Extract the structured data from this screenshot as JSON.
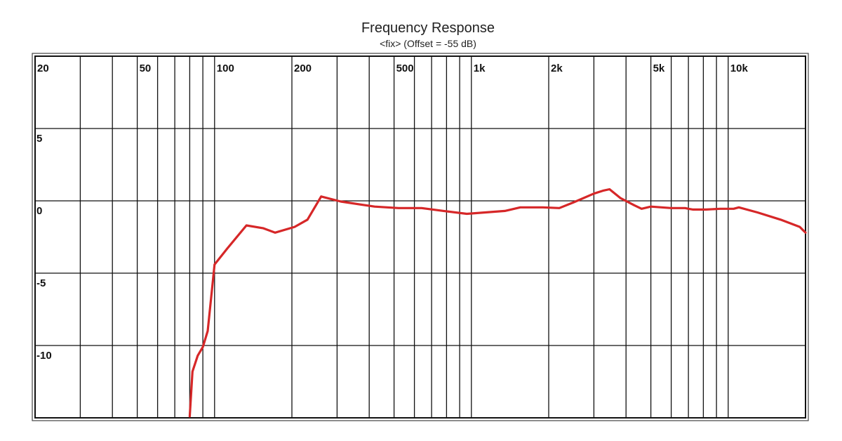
{
  "chart_data": {
    "type": "line",
    "title": "Frequency Response",
    "subtitle": "<fix> (Offset = -55 dB)",
    "xlabel": "",
    "ylabel": "",
    "x_scale": "log",
    "xlim": [
      20,
      20000
    ],
    "ylim": [
      -15,
      10
    ],
    "grid": true,
    "x_gridlines": [
      20,
      30,
      40,
      50,
      60,
      70,
      80,
      90,
      100,
      200,
      300,
      400,
      500,
      600,
      700,
      800,
      900,
      1000,
      2000,
      3000,
      4000,
      5000,
      6000,
      7000,
      8000,
      9000,
      10000
    ],
    "x_ticks": [
      {
        "value": 20,
        "label": "20"
      },
      {
        "value": 50,
        "label": "50"
      },
      {
        "value": 100,
        "label": "100"
      },
      {
        "value": 200,
        "label": "200"
      },
      {
        "value": 500,
        "label": "500"
      },
      {
        "value": 1000,
        "label": "1k"
      },
      {
        "value": 2000,
        "label": "2k"
      },
      {
        "value": 5000,
        "label": "5k"
      },
      {
        "value": 10000,
        "label": "10k"
      }
    ],
    "y_ticks": [
      {
        "value": 5,
        "label": "5"
      },
      {
        "value": 0,
        "label": "0"
      },
      {
        "value": -5,
        "label": "-5"
      },
      {
        "value": -10,
        "label": "-10"
      }
    ],
    "series": [
      {
        "color": "#d62728",
        "x": [
          80,
          82,
          86,
          90,
          94,
          100,
          112,
          133,
          155,
          172,
          205,
          230,
          260,
          310,
          420,
          520,
          640,
          780,
          960,
          1350,
          1550,
          1900,
          2200,
          2500,
          3000,
          3250,
          3450,
          3800,
          4300,
          4600,
          5000,
          6000,
          6800,
          7000,
          7300,
          8200,
          9300,
          10500,
          11000,
          13000,
          16000,
          19000,
          20000
        ],
        "y": [
          -14.9,
          -11.8,
          -10.7,
          -10.1,
          -9,
          -4.4,
          -3.3,
          -1.7,
          -1.9,
          -2.2,
          -1.8,
          -1.3,
          0.3,
          -0.05,
          -0.4,
          -0.5,
          -0.5,
          -0.7,
          -0.9,
          -0.7,
          -0.45,
          -0.45,
          -0.5,
          -0.1,
          0.5,
          0.7,
          0.8,
          0.2,
          -0.3,
          -0.55,
          -0.4,
          -0.5,
          -0.5,
          -0.55,
          -0.6,
          -0.6,
          -0.55,
          -0.55,
          -0.45,
          -0.8,
          -1.3,
          -1.8,
          -2.2
        ]
      }
    ]
  }
}
